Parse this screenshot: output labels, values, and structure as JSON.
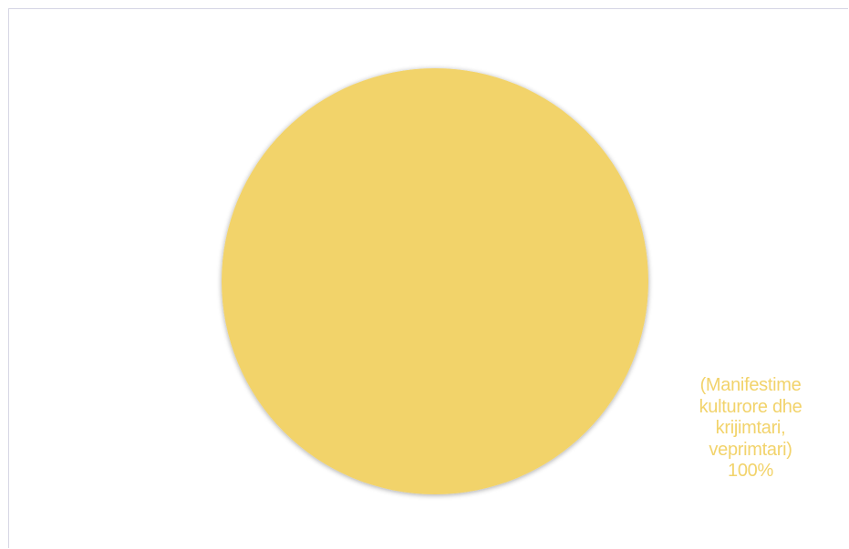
{
  "chart_data": {
    "type": "pie",
    "title": "",
    "categories": [
      "(Manifestime kulturore dhe krijimtari, veprimtari)"
    ],
    "values": [
      100
    ],
    "colors": [
      "#f2d36b"
    ],
    "data_labels": [
      {
        "lines": [
          "(Manifestime",
          "kulturore dhe",
          "krijimtari,",
          "veprimtari)",
          "100%"
        ]
      }
    ],
    "legend": "none"
  }
}
